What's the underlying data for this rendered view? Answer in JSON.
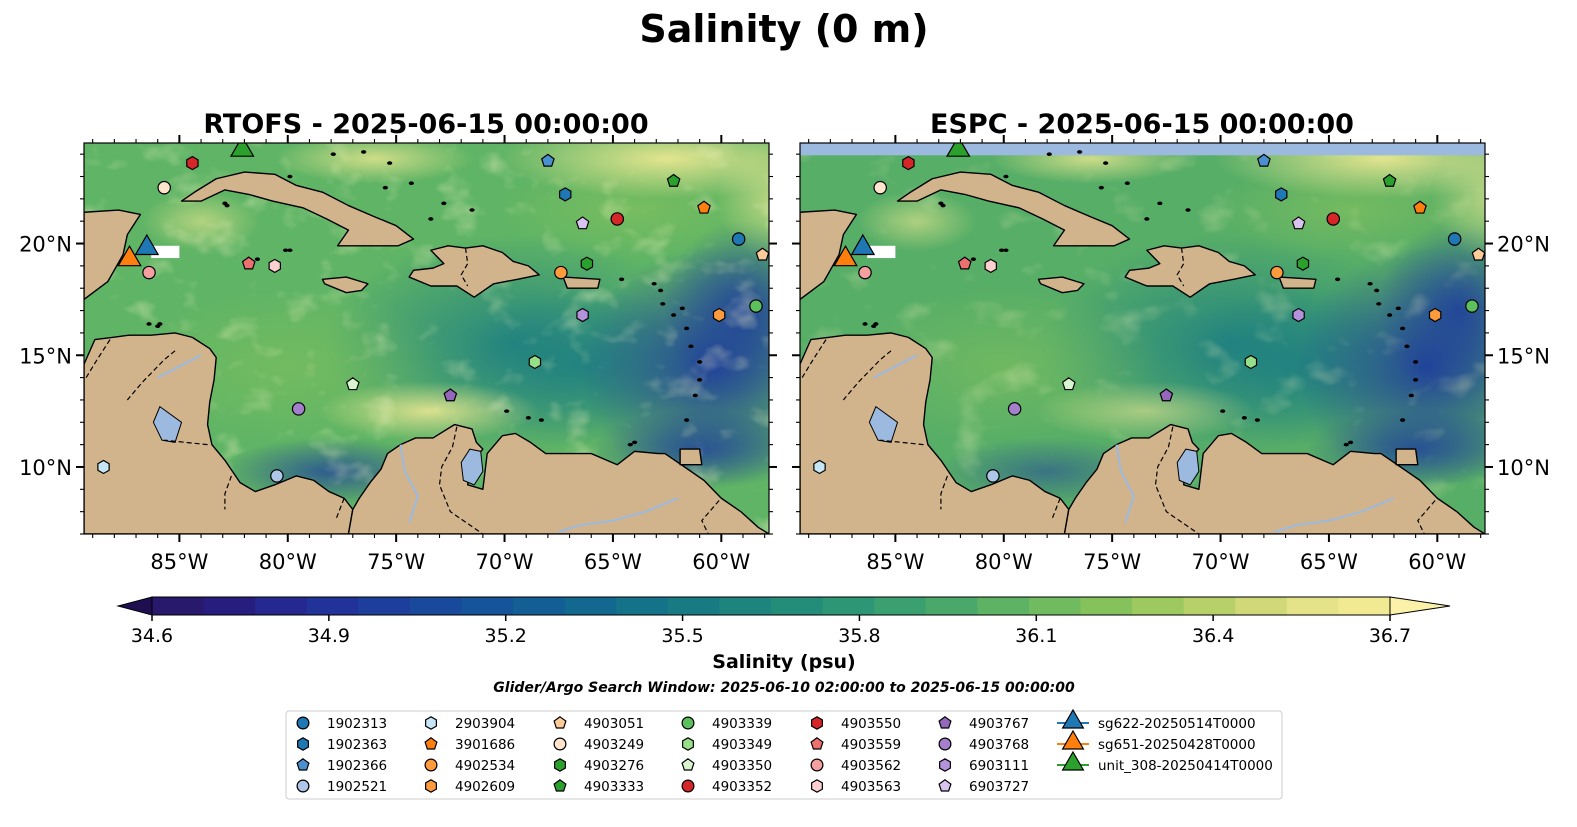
{
  "suptitle": "Salinity (0 m)",
  "panels": [
    {
      "title": "RTOFS - 2025-06-15 00:00:00"
    },
    {
      "title": "ESPC - 2025-06-15 00:00:00"
    }
  ],
  "map": {
    "lon_range": [
      -89.4,
      -57.8
    ],
    "lat_range": [
      7.0,
      24.5
    ],
    "lon_ticks": [
      {
        "value": -85,
        "label": "85°W"
      },
      {
        "value": -80,
        "label": "80°W"
      },
      {
        "value": -75,
        "label": "75°W"
      },
      {
        "value": -70,
        "label": "70°W"
      },
      {
        "value": -65,
        "label": "65°W"
      },
      {
        "value": -60,
        "label": "60°W"
      }
    ],
    "lat_ticks": [
      {
        "value": 10,
        "label": "10°N"
      },
      {
        "value": 15,
        "label": "15°N"
      },
      {
        "value": 20,
        "label": "20°N"
      }
    ],
    "land_color": "#d2b48c",
    "lake_color": "#9cb9e0"
  },
  "colorbar": {
    "label": "Salinity (psu)",
    "min": 34.6,
    "max": 36.7,
    "extend": "both",
    "ticks": [
      "34.6",
      "34.9",
      "35.2",
      "35.5",
      "35.8",
      "36.1",
      "36.4",
      "36.7"
    ],
    "colors": [
      "#28196c",
      "#271d7f",
      "#25288f",
      "#213298",
      "#1e3e9c",
      "#19499b",
      "#155498",
      "#135e94",
      "#12688f",
      "#147289",
      "#187b84",
      "#1d847e",
      "#238d79",
      "#2d9674",
      "#3aa06f",
      "#4aa96a",
      "#5db264",
      "#70ba5f",
      "#86c25c",
      "#9ec95f",
      "#b8d068",
      "#d0d878",
      "#e5e38a",
      "#f2ea93"
    ]
  },
  "search_window": "Glider/Argo Search Window: 2025-06-10 02:00:00 to 2025-06-15 00:00:00",
  "floats": [
    {
      "id": "1902313",
      "marker": "circle",
      "color": "#1f77b4",
      "lon": -59.2,
      "lat": 20.2
    },
    {
      "id": "1902363",
      "marker": "hexagon",
      "color": "#1f77b4",
      "lon": -67.2,
      "lat": 22.2
    },
    {
      "id": "1902366",
      "marker": "pentagon",
      "color": "#4a90d0",
      "lon": -68.0,
      "lat": 23.7
    },
    {
      "id": "1902521",
      "marker": "circle",
      "color": "#aec7e8",
      "lon": -80.5,
      "lat": 9.6
    },
    {
      "id": "2903904",
      "marker": "hexagon",
      "color": "#c6e6f5",
      "lon": -88.5,
      "lat": 10.0
    },
    {
      "id": "3901686",
      "marker": "pentagon",
      "color": "#ff7f0e",
      "lon": -60.8,
      "lat": 21.6
    },
    {
      "id": "4902534",
      "marker": "circle",
      "color": "#ff9b3d",
      "lon": -67.4,
      "lat": 18.7
    },
    {
      "id": "4902609",
      "marker": "hexagon",
      "color": "#ff9b3d",
      "lon": -60.1,
      "lat": 16.8
    },
    {
      "id": "4903051",
      "marker": "pentagon",
      "color": "#ffcc99",
      "lon": -58.1,
      "lat": 19.5
    },
    {
      "id": "4903249",
      "marker": "circle",
      "color": "#ffe5cc",
      "lon": -85.7,
      "lat": 22.5
    },
    {
      "id": "4903276",
      "marker": "hexagon",
      "color": "#2ca02c",
      "lon": -66.2,
      "lat": 19.1
    },
    {
      "id": "4903333",
      "marker": "pentagon",
      "color": "#2ca02c",
      "lon": -62.2,
      "lat": 22.8
    },
    {
      "id": "4903339",
      "marker": "circle",
      "color": "#5cc05c",
      "lon": -58.4,
      "lat": 17.2
    },
    {
      "id": "4903349",
      "marker": "hexagon",
      "color": "#98df8a",
      "lon": -68.6,
      "lat": 14.7
    },
    {
      "id": "4903350",
      "marker": "pentagon",
      "color": "#d8f5d0",
      "lon": -77.0,
      "lat": 13.7
    },
    {
      "id": "4903352",
      "marker": "circle",
      "color": "#d62728",
      "lon": -64.8,
      "lat": 21.1
    },
    {
      "id": "4903550",
      "marker": "hexagon",
      "color": "#d62728",
      "lon": -84.4,
      "lat": 23.6
    },
    {
      "id": "4903559",
      "marker": "pentagon",
      "color": "#ee6f6f",
      "lon": -81.8,
      "lat": 19.1
    },
    {
      "id": "4903562",
      "marker": "circle",
      "color": "#f4a0a0",
      "lon": -86.4,
      "lat": 18.7
    },
    {
      "id": "4903563",
      "marker": "hexagon",
      "color": "#fcd0d0",
      "lon": -80.6,
      "lat": 19.0
    },
    {
      "id": "4903767",
      "marker": "pentagon",
      "color": "#9467bd",
      "lon": -72.5,
      "lat": 13.2
    },
    {
      "id": "4903768",
      "marker": "circle",
      "color": "#a37fcc",
      "lon": -79.5,
      "lat": 12.6
    },
    {
      "id": "6903111",
      "marker": "hexagon",
      "color": "#b592dc",
      "lon": -66.4,
      "lat": 16.8
    },
    {
      "id": "6903727",
      "marker": "pentagon",
      "color": "#d9c4ef",
      "lon": -66.4,
      "lat": 20.9
    }
  ],
  "gliders": [
    {
      "id": "sg622-20250514T0000",
      "color": "#1f77b4",
      "lon": -86.5,
      "lat": 19.8
    },
    {
      "id": "sg651-20250428T0000",
      "color": "#ff7f0e",
      "lon": -87.3,
      "lat": 19.3
    },
    {
      "id": "unit_308-20250414T0000",
      "color": "#2ca02c",
      "lon": -82.1,
      "lat": 24.2
    }
  ]
}
